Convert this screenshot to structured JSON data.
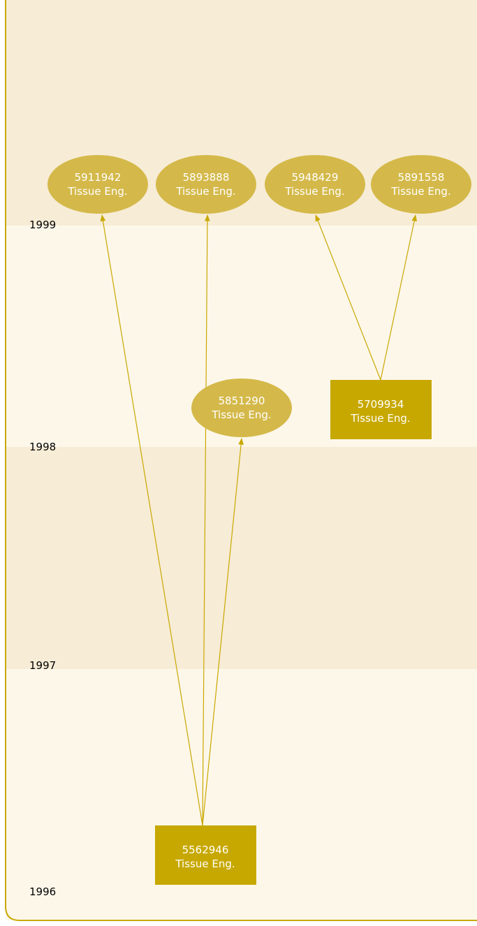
{
  "years": [
    "1999",
    "1998",
    "1997",
    "1996"
  ],
  "nodes": [
    {
      "id": "5911942",
      "label": "Tissue Eng."
    },
    {
      "id": "5893888",
      "label": "Tissue Eng."
    },
    {
      "id": "5948429",
      "label": "Tissue Eng."
    },
    {
      "id": "5891558",
      "label": "Tissue Eng."
    },
    {
      "id": "5851290",
      "label": "Tissue Eng."
    },
    {
      "id": "5709934",
      "label": "Tissue Eng."
    },
    {
      "id": "5562946",
      "label": "Tissue Eng."
    }
  ]
}
